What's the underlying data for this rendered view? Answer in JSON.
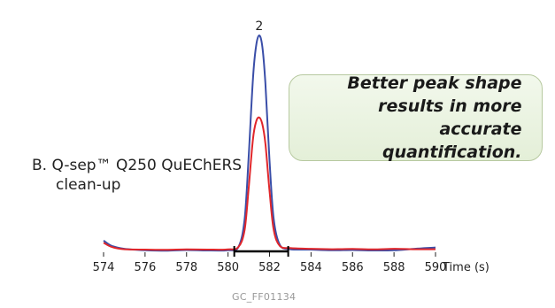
{
  "panel": {
    "label_prefix": "B.",
    "label_line1": "Q-sep™ Q250 QuEChERS",
    "label_line2": "clean-up"
  },
  "callout": {
    "line1": "Better peak shape",
    "line2": "results in more accurate",
    "line3": "quantification."
  },
  "credit": "GC_FF01134",
  "colors": {
    "blue": "#3a4ea8",
    "red": "#e0262b",
    "bar": "#000000",
    "callout_border": "#b7c9a0"
  },
  "chart_data": {
    "type": "line",
    "xlabel": "Time (s)",
    "xlim": [
      574,
      590
    ],
    "ylim": [
      0,
      100
    ],
    "xticks": [
      574,
      576,
      578,
      580,
      582,
      584,
      586,
      588,
      590
    ],
    "peak_label": {
      "text": "2",
      "x": 581.5
    },
    "integration_range": [
      580.3,
      582.9
    ],
    "series": [
      {
        "color": "#3a4ea8",
        "x": [
          574,
          574.4,
          575,
          576,
          577,
          578,
          579,
          580,
          580.5,
          580.8,
          581.0,
          581.2,
          581.35,
          581.5,
          581.65,
          581.8,
          582.0,
          582.2,
          582.5,
          583,
          584,
          585,
          586,
          587,
          588,
          589,
          590
        ],
        "y": [
          5,
          2.5,
          1.2,
          0.5,
          0.3,
          0.6,
          0.4,
          0.5,
          2,
          15,
          45,
          80,
          95,
          100,
          95,
          78,
          42,
          15,
          3,
          1,
          0.8,
          0.5,
          0.6,
          0.4,
          0.5,
          1.2,
          1.8
        ]
      },
      {
        "color": "#e0262b",
        "x": [
          574,
          574.4,
          575,
          576,
          577,
          578,
          579,
          580,
          580.5,
          580.8,
          581.0,
          581.2,
          581.35,
          581.5,
          581.65,
          581.8,
          582.0,
          582.2,
          582.5,
          583,
          584,
          585,
          586,
          587,
          588,
          589,
          590
        ],
        "y": [
          4,
          2,
          1,
          0.8,
          0.7,
          0.9,
          0.8,
          0.9,
          2,
          10,
          30,
          52,
          60,
          62,
          59,
          50,
          28,
          10,
          2.5,
          1.5,
          1.2,
          1,
          1.1,
          0.9,
          1.2,
          1,
          1
        ]
      }
    ]
  }
}
